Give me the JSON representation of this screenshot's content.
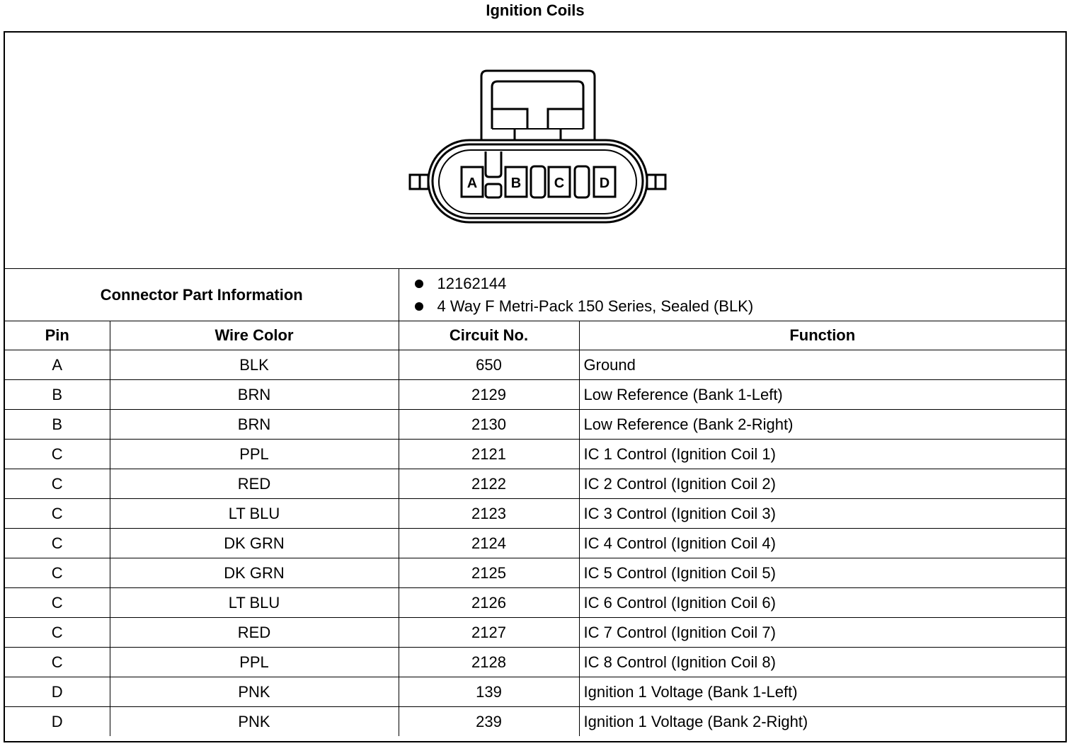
{
  "title": "Ignition Coils",
  "connector": {
    "pin_labels": [
      "A",
      "B",
      "C",
      "D"
    ],
    "part_info_label": "Connector Part Information",
    "part_info": [
      "12162144",
      "4 Way F Metri-Pack 150 Series, Sealed (BLK)"
    ]
  },
  "columns": [
    "Pin",
    "Wire Color",
    "Circuit No.",
    "Function"
  ],
  "rows": [
    [
      "A",
      "BLK",
      "650",
      "Ground"
    ],
    [
      "B",
      "BRN",
      "2129",
      "Low Reference (Bank 1-Left)"
    ],
    [
      "B",
      "BRN",
      "2130",
      "Low Reference (Bank 2-Right)"
    ],
    [
      "C",
      "PPL",
      "2121",
      "IC 1 Control (Ignition Coil 1)"
    ],
    [
      "C",
      "RED",
      "2122",
      "IC 2 Control (Ignition Coil 2)"
    ],
    [
      "C",
      "LT BLU",
      "2123",
      "IC 3 Control (Ignition Coil 3)"
    ],
    [
      "C",
      "DK GRN",
      "2124",
      "IC 4 Control (Ignition Coil 4)"
    ],
    [
      "C",
      "DK GRN",
      "2125",
      "IC 5 Control (Ignition Coil 5)"
    ],
    [
      "C",
      "LT BLU",
      "2126",
      "IC 6 Control (Ignition Coil 6)"
    ],
    [
      "C",
      "RED",
      "2127",
      "IC 7 Control (Ignition Coil 7)"
    ],
    [
      "C",
      "PPL",
      "2128",
      "IC 8 Control (Ignition Coil 8)"
    ],
    [
      "D",
      "PNK",
      "139",
      "Ignition 1 Voltage (Bank 1-Left)"
    ],
    [
      "D",
      "PNK",
      "239",
      "Ignition 1 Voltage (Bank 2-Right)"
    ]
  ]
}
